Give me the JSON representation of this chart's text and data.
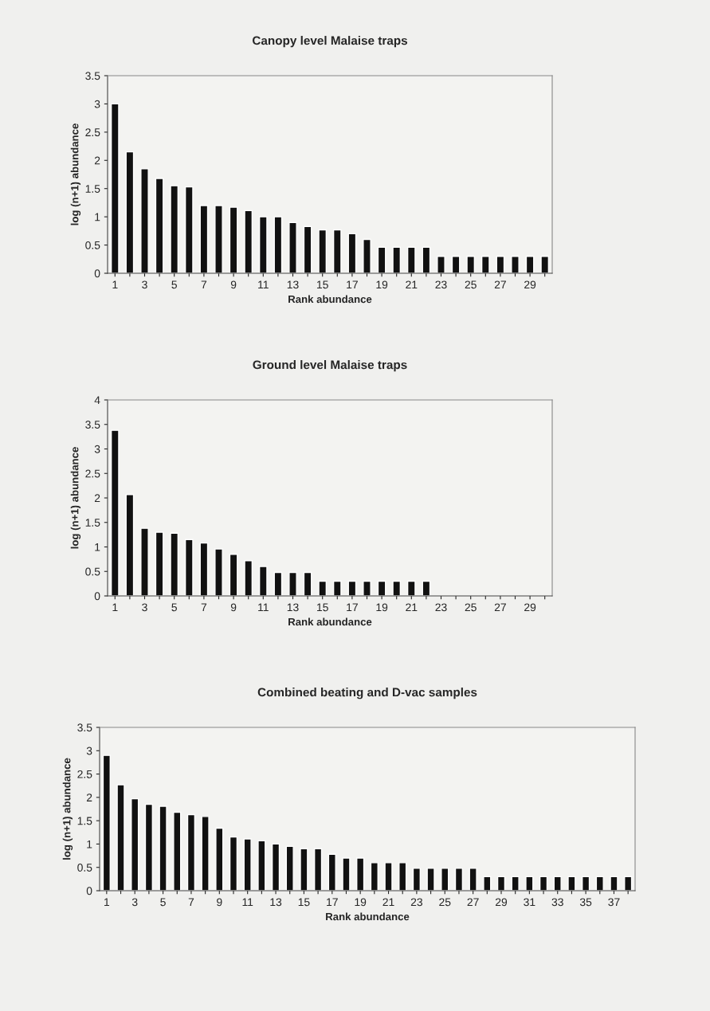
{
  "chart_data": [
    {
      "type": "bar",
      "title": "Canopy level Malaise traps",
      "xlabel": "Rank abundance",
      "ylabel": "log (n+1) abundance",
      "categories": [
        "1",
        null,
        "3",
        null,
        "5",
        null,
        "7",
        null,
        "9",
        null,
        "11",
        null,
        "13",
        null,
        "15",
        null,
        "17",
        null,
        "19",
        null,
        "21",
        null,
        "23",
        null,
        "25",
        null,
        "27",
        null,
        "29",
        null
      ],
      "values": [
        3.0,
        2.15,
        1.85,
        1.68,
        1.55,
        1.53,
        1.2,
        1.2,
        1.17,
        1.11,
        1.0,
        1.0,
        0.9,
        0.83,
        0.77,
        0.77,
        0.7,
        0.6,
        0.46,
        0.46,
        0.46,
        0.46,
        0.3,
        0.3,
        0.3,
        0.3,
        0.3,
        0.3,
        0.3,
        0.3
      ],
      "color": "#111111",
      "ylim": [
        0,
        3.5
      ],
      "yticks": [
        0,
        0.5,
        1,
        1.5,
        2,
        2.5,
        3,
        3.5
      ],
      "grid": false,
      "legend": false
    },
    {
      "type": "bar",
      "title": "Ground level Malaise traps",
      "xlabel": "Rank abundance",
      "ylabel": "log (n+1) abundance",
      "categories": [
        "1",
        null,
        "3",
        null,
        "5",
        null,
        "7",
        null,
        "9",
        null,
        "11",
        null,
        "13",
        null,
        "15",
        null,
        "17",
        null,
        "19",
        null,
        "21",
        null,
        "23",
        null,
        "25",
        null,
        "27",
        null,
        "29",
        null
      ],
      "values": [
        3.38,
        2.07,
        1.38,
        1.3,
        1.28,
        1.15,
        1.08,
        0.96,
        0.85,
        0.72,
        0.6,
        0.48,
        0.48,
        0.48,
        0.3,
        0.3,
        0.3,
        0.3,
        0.3,
        0.3,
        0.3,
        0.3,
        null,
        null,
        null,
        null,
        null,
        null,
        null,
        null
      ],
      "color": "#111111",
      "ylim": [
        0,
        4
      ],
      "yticks": [
        0,
        0.5,
        1,
        1.5,
        2,
        2.5,
        3,
        3.5,
        4
      ],
      "grid": false,
      "legend": false
    },
    {
      "type": "bar",
      "title": "Combined beating and D-vac samples",
      "xlabel": "Rank abundance",
      "ylabel": "log (n+1) abundance",
      "categories": [
        "1",
        null,
        "3",
        null,
        "5",
        null,
        "7",
        null,
        "9",
        null,
        "11",
        null,
        "13",
        null,
        "15",
        null,
        "17",
        null,
        "19",
        null,
        "21",
        null,
        "23",
        null,
        "25",
        null,
        "27",
        null,
        "29",
        null,
        "31",
        null,
        "33",
        null,
        "35",
        null,
        "37",
        null
      ],
      "values": [
        2.9,
        2.27,
        1.97,
        1.85,
        1.81,
        1.68,
        1.63,
        1.59,
        1.34,
        1.15,
        1.11,
        1.07,
        1.0,
        0.95,
        0.9,
        0.9,
        0.78,
        0.7,
        0.7,
        0.6,
        0.6,
        0.6,
        0.48,
        0.48,
        0.48,
        0.48,
        0.48,
        0.3,
        0.3,
        0.3,
        0.3,
        0.3,
        0.3,
        0.3,
        0.3,
        0.3,
        0.3,
        0.3
      ],
      "color": "#111111",
      "ylim": [
        0,
        3.5
      ],
      "yticks": [
        0,
        0.5,
        1,
        1.5,
        2,
        2.5,
        3,
        3.5
      ],
      "grid": false,
      "legend": false
    }
  ]
}
